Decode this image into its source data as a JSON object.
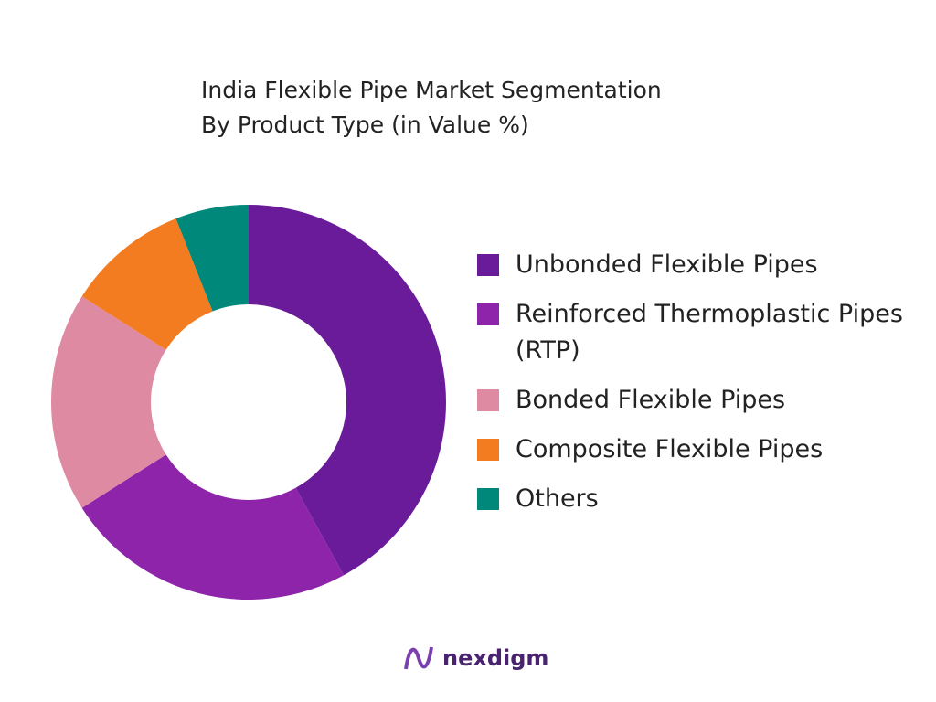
{
  "chart_data": {
    "type": "donut",
    "title": "India Flexible Pipe Market Segmentation",
    "subtitle": "By Product Type (in Value %)",
    "categories": [
      "Unbonded Flexible Pipes",
      "Reinforced Thermoplastic Pipes (RTP)",
      "Bonded Flexible Pipes",
      "Composite Flexible Pipes",
      "Others"
    ],
    "values": [
      42,
      24,
      18,
      10,
      6
    ],
    "colors": [
      "#6a1b9a",
      "#8e24aa",
      "#de8aa3",
      "#f47c20",
      "#00897b"
    ],
    "legend": "right"
  },
  "footer": {
    "logo": "nexdigm"
  }
}
